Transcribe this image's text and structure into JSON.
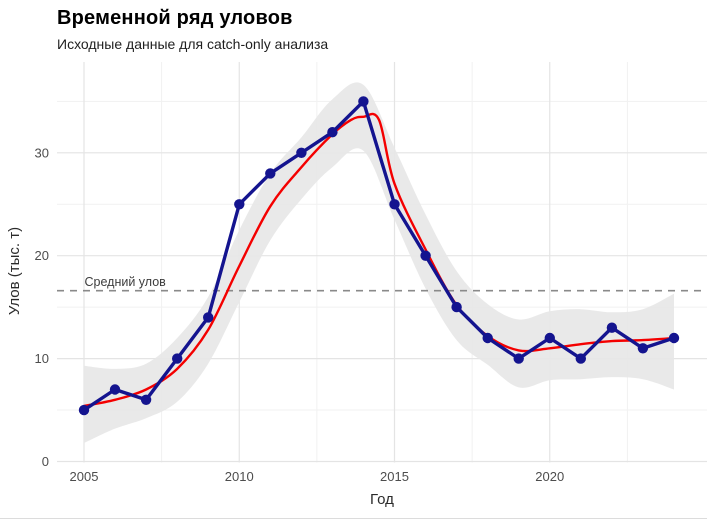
{
  "chart_data": {
    "type": "line",
    "title": "Временной ряд уловов",
    "subtitle": "Исходные данные для catch-only анализа",
    "xlabel": "Год",
    "ylabel": "Улов (тыс. т)",
    "x_ticks": [
      2005,
      2010,
      2015,
      2020
    ],
    "x_minor": [
      2007.5,
      2012.5,
      2017.5,
      2022.5
    ],
    "y_ticks": [
      0,
      10,
      20,
      30
    ],
    "y_minor": [
      5,
      15,
      25,
      35
    ],
    "xlim": [
      2004.1,
      2025.1
    ],
    "ylim": [
      -0.2,
      38.6
    ],
    "grid": true,
    "legend": "none",
    "years": [
      2005,
      2006,
      2007,
      2008,
      2009,
      2010,
      2011,
      2012,
      2013,
      2014,
      2015,
      2016,
      2017,
      2018,
      2019,
      2020,
      2021,
      2022,
      2023,
      2024
    ],
    "catch_values": [
      5,
      7,
      6,
      10,
      14,
      25,
      28,
      30,
      32,
      35,
      25,
      20,
      15,
      12,
      10,
      12,
      10,
      13,
      11,
      12
    ],
    "smooth": {
      "kind": "loess",
      "x": [
        2005,
        2006,
        2007,
        2008,
        2009,
        2010,
        2011,
        2012,
        2013,
        2013.6,
        2014,
        2014.5,
        2015,
        2016,
        2017,
        2018,
        2019,
        2020,
        2021,
        2022,
        2023,
        2024
      ],
      "values": [
        5.4,
        6.0,
        7.0,
        9.0,
        12.8,
        19.0,
        24.8,
        28.6,
        31.8,
        33.2,
        33.5,
        33.2,
        27.0,
        20.6,
        15.2,
        12.2,
        10.8,
        11.0,
        11.4,
        11.7,
        11.8,
        12.0
      ]
    },
    "ribbon": {
      "x": [
        2005,
        2006,
        2007,
        2008,
        2009,
        2010,
        2011,
        2012,
        2013,
        2014,
        2015,
        2016,
        2017,
        2018,
        2019,
        2020,
        2021,
        2022,
        2023,
        2024
      ],
      "upper": [
        9.3,
        9.0,
        9.5,
        12.0,
        16.0,
        22.5,
        28.0,
        31.5,
        35.2,
        36.6,
        30.5,
        24.0,
        18.5,
        15.3,
        13.8,
        14.6,
        14.8,
        14.5,
        14.8,
        16.3
      ],
      "lower": [
        1.8,
        3.2,
        4.2,
        5.8,
        9.5,
        15.5,
        21.5,
        25.5,
        28.6,
        30.2,
        23.5,
        16.8,
        11.8,
        9.4,
        7.2,
        7.9,
        8.0,
        8.2,
        8.0,
        7.0
      ]
    },
    "mean_line": {
      "value": 16.6,
      "label": "Средний улов",
      "style": "dashed"
    },
    "colors": {
      "series": "#14148F",
      "smooth": "#F40000",
      "ribbon": "#E7E7E7",
      "grid_major": "#E4E4E4",
      "grid_minor": "#F1F1F1",
      "tick_text": "#4D4D4D",
      "axis_title": "#2B2B2B",
      "mean_line": "#8A8A8A",
      "annotation": "#3D3D3D"
    }
  }
}
